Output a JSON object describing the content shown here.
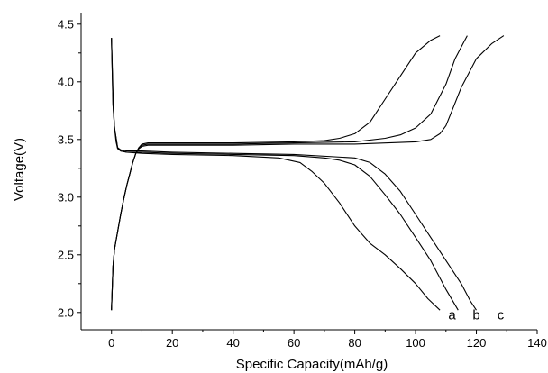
{
  "chart_data": {
    "type": "line",
    "title": "",
    "xlabel": "Specific Capacity(mAh/g)",
    "ylabel": "Voltage(V)",
    "xlim": [
      -10,
      140
    ],
    "ylim": [
      1.85,
      4.6
    ],
    "xticks": [
      0,
      20,
      40,
      60,
      80,
      100,
      120,
      140
    ],
    "xtick_labels": [
      "0",
      "20",
      "40",
      "60",
      "80",
      "100",
      "120",
      "140"
    ],
    "yticks": [
      2.0,
      2.5,
      3.0,
      3.5,
      4.0,
      4.5
    ],
    "ytick_labels": [
      "2.0",
      "2.5",
      "3.0",
      "3.5",
      "4.0",
      "4.5"
    ],
    "grid": false,
    "line_color": "#000000",
    "curve_labels": [
      {
        "text": "a",
        "x": 112,
        "y": 1.94
      },
      {
        "text": "b",
        "x": 120,
        "y": 1.94
      },
      {
        "text": "c",
        "x": 128,
        "y": 1.94
      }
    ],
    "series": [
      {
        "curve": "a",
        "segment": "charge",
        "x": [
          0,
          0.5,
          1,
          2,
          3,
          4,
          5,
          6,
          7,
          8,
          9,
          10,
          12,
          20,
          40,
          60,
          70,
          75,
          80,
          85,
          90,
          95,
          100,
          105,
          108
        ],
        "y": [
          2.02,
          2.4,
          2.55,
          2.7,
          2.85,
          2.98,
          3.1,
          3.2,
          3.3,
          3.38,
          3.43,
          3.46,
          3.47,
          3.47,
          3.47,
          3.48,
          3.49,
          3.51,
          3.55,
          3.65,
          3.85,
          4.05,
          4.25,
          4.36,
          4.4
        ]
      },
      {
        "curve": "b",
        "segment": "charge",
        "x": [
          0,
          0.5,
          1,
          2,
          3,
          4,
          5,
          6,
          7,
          8,
          9,
          10,
          12,
          20,
          40,
          60,
          80,
          90,
          95,
          100,
          105,
          110,
          113,
          116,
          117
        ],
        "y": [
          2.02,
          2.4,
          2.55,
          2.7,
          2.85,
          2.98,
          3.1,
          3.2,
          3.3,
          3.38,
          3.43,
          3.45,
          3.46,
          3.46,
          3.46,
          3.47,
          3.48,
          3.51,
          3.54,
          3.6,
          3.72,
          3.98,
          4.2,
          4.35,
          4.4
        ]
      },
      {
        "curve": "c",
        "segment": "charge",
        "x": [
          0,
          0.5,
          1,
          2,
          3,
          4,
          5,
          6,
          7,
          8,
          9,
          10,
          12,
          20,
          40,
          60,
          80,
          100,
          105,
          108,
          110,
          112,
          115,
          120,
          125,
          129
        ],
        "y": [
          2.02,
          2.4,
          2.55,
          2.7,
          2.85,
          2.98,
          3.1,
          3.2,
          3.3,
          3.38,
          3.42,
          3.44,
          3.45,
          3.45,
          3.45,
          3.46,
          3.46,
          3.48,
          3.5,
          3.55,
          3.62,
          3.75,
          3.95,
          4.2,
          4.33,
          4.4
        ]
      },
      {
        "curve": "a",
        "segment": "discharge",
        "x": [
          0,
          0.3,
          0.6,
          1,
          1.5,
          2,
          3,
          5,
          10,
          20,
          40,
          55,
          62,
          66,
          70,
          75,
          80,
          85,
          90,
          95,
          100,
          104,
          108
        ],
        "y": [
          4.38,
          4.1,
          3.8,
          3.6,
          3.48,
          3.42,
          3.4,
          3.39,
          3.38,
          3.37,
          3.36,
          3.34,
          3.3,
          3.22,
          3.12,
          2.95,
          2.75,
          2.6,
          2.5,
          2.38,
          2.25,
          2.12,
          2.02
        ]
      },
      {
        "curve": "b",
        "segment": "discharge",
        "x": [
          0,
          0.5,
          1,
          2,
          3,
          5,
          10,
          20,
          40,
          60,
          70,
          75,
          80,
          85,
          90,
          95,
          100,
          105,
          110,
          114
        ],
        "y": [
          4.38,
          3.8,
          3.6,
          3.43,
          3.4,
          3.39,
          3.39,
          3.38,
          3.37,
          3.36,
          3.34,
          3.32,
          3.28,
          3.18,
          3.02,
          2.85,
          2.65,
          2.45,
          2.2,
          2.02
        ]
      },
      {
        "curve": "c",
        "segment": "discharge",
        "x": [
          0,
          0.5,
          1,
          2,
          3,
          5,
          10,
          20,
          40,
          60,
          80,
          85,
          90,
          95,
          100,
          105,
          110,
          115,
          118,
          120
        ],
        "y": [
          4.38,
          3.8,
          3.6,
          3.43,
          3.41,
          3.4,
          3.4,
          3.39,
          3.38,
          3.37,
          3.34,
          3.3,
          3.2,
          3.05,
          2.85,
          2.65,
          2.45,
          2.25,
          2.1,
          2.02
        ]
      }
    ]
  }
}
